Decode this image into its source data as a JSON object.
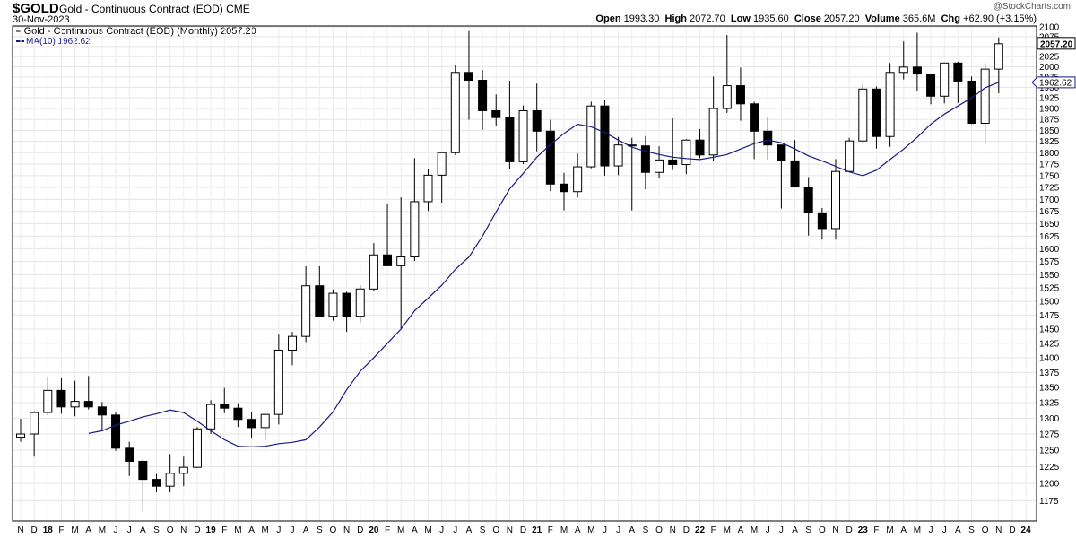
{
  "header": {
    "symbol": "$GOLD",
    "description": "Gold - Continuous Contract (EOD) CME",
    "date": "30-Nov-2023",
    "watermark": "@StockCharts.com",
    "open_label": "Open",
    "open": "1993.30",
    "high_label": "High",
    "high": "2072.70",
    "low_label": "Low",
    "low": "1935.60",
    "close_label": "Close",
    "close": "2057.20",
    "volume_label": "Volume",
    "volume": "365.6M",
    "chg_label": "Chg",
    "chg": "+62.90 (+3.15%)"
  },
  "legend": {
    "price_entry": "Gold - Continuous Contract (EOD) (Monthly) 2057.20",
    "ma_entry": "MA(10) 1962.62"
  },
  "chart_data": {
    "type": "candlestick",
    "title": "Gold - Continuous Contract (EOD) (Monthly)",
    "ylim": [
      1160,
      2100
    ],
    "y_scale": "log",
    "y_ticks": [
      1175,
      1200,
      1225,
      1250,
      1275,
      1300,
      1325,
      1350,
      1375,
      1400,
      1425,
      1450,
      1475,
      1500,
      1525,
      1550,
      1575,
      1600,
      1625,
      1650,
      1675,
      1700,
      1725,
      1750,
      1775,
      1800,
      1825,
      1850,
      1875,
      1900,
      1925,
      1950,
      1975,
      2000,
      2025,
      2050,
      2075,
      2100
    ],
    "x_tick_labels": [
      "N",
      "D",
      "18",
      "F",
      "M",
      "A",
      "M",
      "J",
      "J",
      "A",
      "S",
      "O",
      "N",
      "D",
      "19",
      "F",
      "M",
      "A",
      "M",
      "J",
      "J",
      "A",
      "S",
      "O",
      "N",
      "D",
      "20",
      "F",
      "M",
      "A",
      "M",
      "J",
      "J",
      "A",
      "S",
      "O",
      "N",
      "D",
      "21",
      "F",
      "M",
      "A",
      "M",
      "J",
      "J",
      "A",
      "S",
      "O",
      "N",
      "D",
      "22",
      "F",
      "M",
      "A",
      "M",
      "J",
      "J",
      "A",
      "S",
      "O",
      "N",
      "D",
      "23",
      "F",
      "M",
      "A",
      "M",
      "J",
      "J",
      "A",
      "S",
      "O",
      "N",
      "D",
      "24"
    ],
    "last_close_label": "2057.20",
    "last_ma_label": "1962.62",
    "grid": true,
    "candles": [
      {
        "x": "Nov 2017",
        "open": 1270,
        "high": 1299,
        "low": 1263,
        "close": 1275
      },
      {
        "x": "Dec 2017",
        "open": 1275,
        "high": 1311,
        "low": 1240,
        "close": 1309
      },
      {
        "x": "Jan 2018",
        "open": 1309,
        "high": 1366,
        "low": 1305,
        "close": 1345
      },
      {
        "x": "Feb 2018",
        "open": 1345,
        "high": 1365,
        "low": 1307,
        "close": 1318
      },
      {
        "x": "Mar 2018",
        "open": 1318,
        "high": 1361,
        "low": 1303,
        "close": 1327
      },
      {
        "x": "Apr 2018",
        "open": 1327,
        "high": 1369,
        "low": 1314,
        "close": 1318
      },
      {
        "x": "May 2018",
        "open": 1318,
        "high": 1326,
        "low": 1282,
        "close": 1305
      },
      {
        "x": "Jun 2018",
        "open": 1305,
        "high": 1309,
        "low": 1249,
        "close": 1253
      },
      {
        "x": "Jul 2018",
        "open": 1253,
        "high": 1263,
        "low": 1211,
        "close": 1233
      },
      {
        "x": "Aug 2018",
        "open": 1233,
        "high": 1235,
        "low": 1160,
        "close": 1206
      },
      {
        "x": "Sep 2018",
        "open": 1206,
        "high": 1214,
        "low": 1187,
        "close": 1196
      },
      {
        "x": "Oct 2018",
        "open": 1196,
        "high": 1244,
        "low": 1187,
        "close": 1215
      },
      {
        "x": "Nov 2018",
        "open": 1215,
        "high": 1240,
        "low": 1196,
        "close": 1224
      },
      {
        "x": "Dec 2018",
        "open": 1224,
        "high": 1286,
        "low": 1223,
        "close": 1283
      },
      {
        "x": "Jan 2019",
        "open": 1283,
        "high": 1329,
        "low": 1275,
        "close": 1322
      },
      {
        "x": "Feb 2019",
        "open": 1322,
        "high": 1349,
        "low": 1308,
        "close": 1316
      },
      {
        "x": "Mar 2019",
        "open": 1316,
        "high": 1324,
        "low": 1286,
        "close": 1298
      },
      {
        "x": "Apr 2019",
        "open": 1298,
        "high": 1310,
        "low": 1268,
        "close": 1285
      },
      {
        "x": "May 2019",
        "open": 1285,
        "high": 1308,
        "low": 1266,
        "close": 1306
      },
      {
        "x": "Jun 2019",
        "open": 1306,
        "high": 1440,
        "low": 1290,
        "close": 1413
      },
      {
        "x": "Jul 2019",
        "open": 1413,
        "high": 1445,
        "low": 1387,
        "close": 1437
      },
      {
        "x": "Aug 2019",
        "open": 1437,
        "high": 1566,
        "low": 1427,
        "close": 1529
      },
      {
        "x": "Sep 2019",
        "open": 1529,
        "high": 1566,
        "low": 1473,
        "close": 1473
      },
      {
        "x": "Oct 2019",
        "open": 1473,
        "high": 1522,
        "low": 1465,
        "close": 1515
      },
      {
        "x": "Nov 2019",
        "open": 1515,
        "high": 1518,
        "low": 1445,
        "close": 1473
      },
      {
        "x": "Dec 2019",
        "open": 1473,
        "high": 1530,
        "low": 1462,
        "close": 1523
      },
      {
        "x": "Jan 2020",
        "open": 1523,
        "high": 1611,
        "low": 1520,
        "close": 1588
      },
      {
        "x": "Feb 2020",
        "open": 1588,
        "high": 1691,
        "low": 1567,
        "close": 1567
      },
      {
        "x": "Mar 2020",
        "open": 1567,
        "high": 1704,
        "low": 1451,
        "close": 1584
      },
      {
        "x": "Apr 2020",
        "open": 1584,
        "high": 1788,
        "low": 1576,
        "close": 1695
      },
      {
        "x": "May 2020",
        "open": 1695,
        "high": 1765,
        "low": 1676,
        "close": 1751
      },
      {
        "x": "Jun 2020",
        "open": 1751,
        "high": 1800,
        "low": 1693,
        "close": 1800
      },
      {
        "x": "Jul 2020",
        "open": 1800,
        "high": 2005,
        "low": 1795,
        "close": 1986
      },
      {
        "x": "Aug 2020",
        "open": 1986,
        "high": 2089,
        "low": 1874,
        "close": 1967
      },
      {
        "x": "Sep 2020",
        "open": 1967,
        "high": 1992,
        "low": 1851,
        "close": 1895
      },
      {
        "x": "Oct 2020",
        "open": 1895,
        "high": 1933,
        "low": 1860,
        "close": 1879
      },
      {
        "x": "Nov 2020",
        "open": 1879,
        "high": 1966,
        "low": 1764,
        "close": 1780
      },
      {
        "x": "Dec 2020",
        "open": 1780,
        "high": 1907,
        "low": 1775,
        "close": 1895
      },
      {
        "x": "Jan 2021",
        "open": 1895,
        "high": 1959,
        "low": 1803,
        "close": 1848
      },
      {
        "x": "Feb 2021",
        "open": 1848,
        "high": 1874,
        "low": 1717,
        "close": 1732
      },
      {
        "x": "Mar 2021",
        "open": 1732,
        "high": 1756,
        "low": 1677,
        "close": 1716
      },
      {
        "x": "Apr 2021",
        "open": 1716,
        "high": 1798,
        "low": 1704,
        "close": 1769
      },
      {
        "x": "May 2021",
        "open": 1769,
        "high": 1916,
        "low": 1766,
        "close": 1906
      },
      {
        "x": "Jun 2021",
        "open": 1906,
        "high": 1919,
        "low": 1750,
        "close": 1771
      },
      {
        "x": "Jul 2021",
        "open": 1771,
        "high": 1835,
        "low": 1751,
        "close": 1817
      },
      {
        "x": "Aug 2021",
        "open": 1817,
        "high": 1833,
        "low": 1677,
        "close": 1815
      },
      {
        "x": "Sep 2021",
        "open": 1815,
        "high": 1837,
        "low": 1721,
        "close": 1757
      },
      {
        "x": "Oct 2021",
        "open": 1757,
        "high": 1814,
        "low": 1745,
        "close": 1784
      },
      {
        "x": "Nov 2021",
        "open": 1784,
        "high": 1877,
        "low": 1762,
        "close": 1774
      },
      {
        "x": "Dec 2021",
        "open": 1774,
        "high": 1830,
        "low": 1753,
        "close": 1828
      },
      {
        "x": "Jan 2022",
        "open": 1828,
        "high": 1853,
        "low": 1788,
        "close": 1795
      },
      {
        "x": "Feb 2022",
        "open": 1795,
        "high": 1976,
        "low": 1781,
        "close": 1900
      },
      {
        "x": "Mar 2022",
        "open": 1900,
        "high": 2079,
        "low": 1890,
        "close": 1954
      },
      {
        "x": "Apr 2022",
        "open": 1954,
        "high": 1998,
        "low": 1872,
        "close": 1911
      },
      {
        "x": "May 2022",
        "open": 1911,
        "high": 1916,
        "low": 1786,
        "close": 1848
      },
      {
        "x": "Jun 2022",
        "open": 1848,
        "high": 1879,
        "low": 1785,
        "close": 1817
      },
      {
        "x": "Jul 2022",
        "open": 1817,
        "high": 1817,
        "low": 1681,
        "close": 1782
      },
      {
        "x": "Aug 2022",
        "open": 1782,
        "high": 1828,
        "low": 1728,
        "close": 1726
      },
      {
        "x": "Sep 2022",
        "open": 1726,
        "high": 1747,
        "low": 1626,
        "close": 1672
      },
      {
        "x": "Oct 2022",
        "open": 1672,
        "high": 1682,
        "low": 1618,
        "close": 1640
      },
      {
        "x": "Nov 2022",
        "open": 1640,
        "high": 1786,
        "low": 1618,
        "close": 1759
      },
      {
        "x": "Dec 2022",
        "open": 1759,
        "high": 1833,
        "low": 1768,
        "close": 1826
      },
      {
        "x": "Jan 2023",
        "open": 1826,
        "high": 1958,
        "low": 1823,
        "close": 1946
      },
      {
        "x": "Feb 2023",
        "open": 1946,
        "high": 1952,
        "low": 1809,
        "close": 1836
      },
      {
        "x": "Mar 2023",
        "open": 1836,
        "high": 2009,
        "low": 1813,
        "close": 1986
      },
      {
        "x": "Apr 2023",
        "open": 1986,
        "high": 2063,
        "low": 1969,
        "close": 1999
      },
      {
        "x": "May 2023",
        "open": 1999,
        "high": 2085,
        "low": 1941,
        "close": 1982
      },
      {
        "x": "Jun 2023",
        "open": 1982,
        "high": 1983,
        "low": 1910,
        "close": 1929
      },
      {
        "x": "Jul 2023",
        "open": 1929,
        "high": 2009,
        "low": 1912,
        "close": 2009
      },
      {
        "x": "Aug 2023",
        "open": 2009,
        "high": 2012,
        "low": 1913,
        "close": 1965
      },
      {
        "x": "Sep 2023",
        "open": 1965,
        "high": 1976,
        "low": 1864,
        "close": 1866
      },
      {
        "x": "Oct 2023",
        "open": 1866,
        "high": 2009,
        "low": 1823,
        "close": 1994
      },
      {
        "x": "Nov 2023",
        "open": 1994,
        "high": 2073,
        "low": 1936,
        "close": 2057
      }
    ],
    "ma_period": 10,
    "ma_values": [
      1276,
      1280,
      1289,
      1295,
      1302,
      1307,
      1313,
      1309,
      1295,
      1280,
      1266,
      1256,
      1255,
      1256,
      1260,
      1262,
      1266,
      1286,
      1310,
      1346,
      1377,
      1400,
      1425,
      1450,
      1483,
      1506,
      1530,
      1560,
      1584,
      1625,
      1674,
      1722,
      1755,
      1790,
      1818,
      1843,
      1864,
      1858,
      1845,
      1828,
      1812,
      1803,
      1796,
      1790,
      1787,
      1785,
      1790,
      1796,
      1808,
      1820,
      1828,
      1822,
      1808,
      1793,
      1782,
      1770,
      1758,
      1750,
      1762,
      1785,
      1808,
      1834,
      1864,
      1887,
      1906,
      1925,
      1949,
      1962
    ]
  }
}
